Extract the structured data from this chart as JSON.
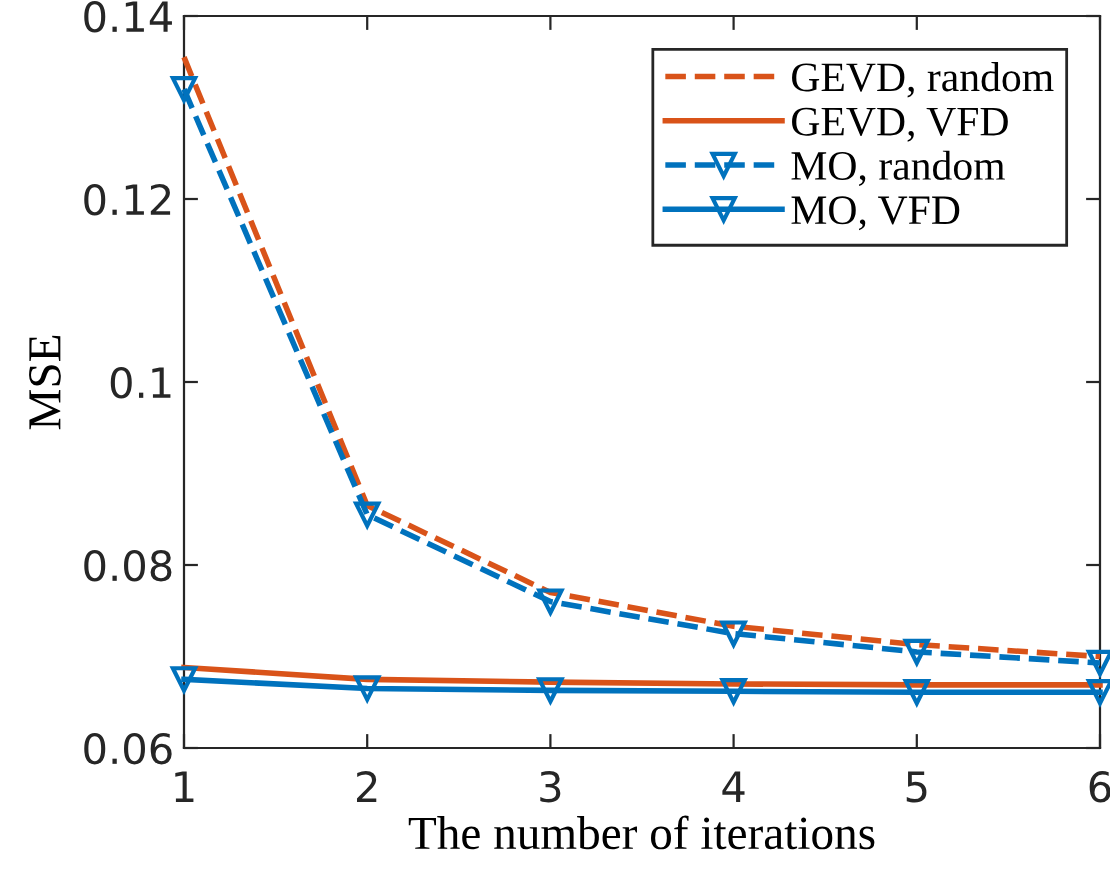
{
  "chart_data": {
    "type": "line",
    "xlabel": "The number of iterations",
    "ylabel": "MSE",
    "x": [
      1,
      2,
      3,
      4,
      5,
      6
    ],
    "series": [
      {
        "name": "GEVD, random",
        "color": "#d95319",
        "line_style": "dashed",
        "marker": "none",
        "values": [
          0.1355,
          0.0865,
          0.077,
          0.0733,
          0.0713,
          0.07
        ]
      },
      {
        "name": "GEVD, VFD",
        "color": "#d95319",
        "line_style": "solid",
        "marker": "none",
        "values": [
          0.0688,
          0.0675,
          0.0672,
          0.067,
          0.0669,
          0.0669
        ]
      },
      {
        "name": "MO, random",
        "color": "#0072bd",
        "line_style": "dashed",
        "marker": "triangle",
        "values": [
          0.132,
          0.0855,
          0.076,
          0.0725,
          0.0705,
          0.0693
        ]
      },
      {
        "name": "MO, VFD",
        "color": "#0072bd",
        "line_style": "solid",
        "marker": "triangle",
        "values": [
          0.0675,
          0.0665,
          0.0663,
          0.0662,
          0.0661,
          0.0661
        ]
      }
    ],
    "xlim": [
      1,
      6
    ],
    "xticks": [
      1,
      2,
      3,
      4,
      5,
      6
    ],
    "ylim": [
      0.06,
      0.14
    ],
    "yticks": [
      0.06,
      0.08,
      {
        "value": 0.1,
        "label": "0.1"
      },
      0.12,
      0.14
    ],
    "grid": false,
    "legend": "top right"
  }
}
